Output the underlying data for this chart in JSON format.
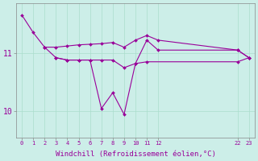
{
  "background_color": "#cceee8",
  "line_color": "#990099",
  "marker_color": "#990099",
  "xlabel": "Windchill (Refroidissement éolien,°C)",
  "xlabel_fontsize": 6.5,
  "xtick_positions": [
    0,
    1,
    2,
    3,
    4,
    5,
    6,
    7,
    8,
    9,
    10,
    11,
    12,
    19,
    20
  ],
  "xtick_labels": [
    "0",
    "1",
    "2",
    "3",
    "4",
    "5",
    "6",
    "7",
    "8",
    "9",
    "10",
    "11",
    "12",
    "22",
    "23"
  ],
  "yticks": [
    10,
    11
  ],
  "ylim": [
    9.55,
    11.85
  ],
  "xlim": [
    -0.5,
    20.5
  ],
  "series": [
    [
      0,
      11.65
    ],
    [
      1,
      11.35
    ],
    [
      2,
      11.1
    ],
    [
      3,
      10.92
    ],
    [
      4,
      10.88
    ],
    [
      5,
      10.88
    ],
    [
      6,
      10.88
    ],
    [
      7,
      10.05
    ],
    [
      8,
      10.32
    ],
    [
      9,
      9.95
    ],
    [
      10,
      10.82
    ],
    [
      11,
      11.22
    ],
    [
      12,
      11.05
    ],
    [
      19,
      11.05
    ],
    [
      20,
      10.92
    ]
  ],
  "line2": [
    [
      2,
      11.1
    ],
    [
      3,
      11.1
    ],
    [
      4,
      11.12
    ],
    [
      5,
      11.14
    ],
    [
      6,
      11.15
    ],
    [
      7,
      11.16
    ],
    [
      8,
      11.18
    ],
    [
      9,
      11.1
    ],
    [
      10,
      11.22
    ],
    [
      11,
      11.3
    ],
    [
      12,
      11.22
    ],
    [
      19,
      11.05
    ],
    [
      20,
      10.92
    ]
  ],
  "line3": [
    [
      3,
      10.92
    ],
    [
      4,
      10.88
    ],
    [
      5,
      10.88
    ],
    [
      6,
      10.88
    ],
    [
      7,
      10.88
    ],
    [
      8,
      10.88
    ],
    [
      9,
      10.75
    ],
    [
      10,
      10.82
    ],
    [
      11,
      10.85
    ],
    [
      19,
      10.85
    ],
    [
      20,
      10.92
    ]
  ]
}
